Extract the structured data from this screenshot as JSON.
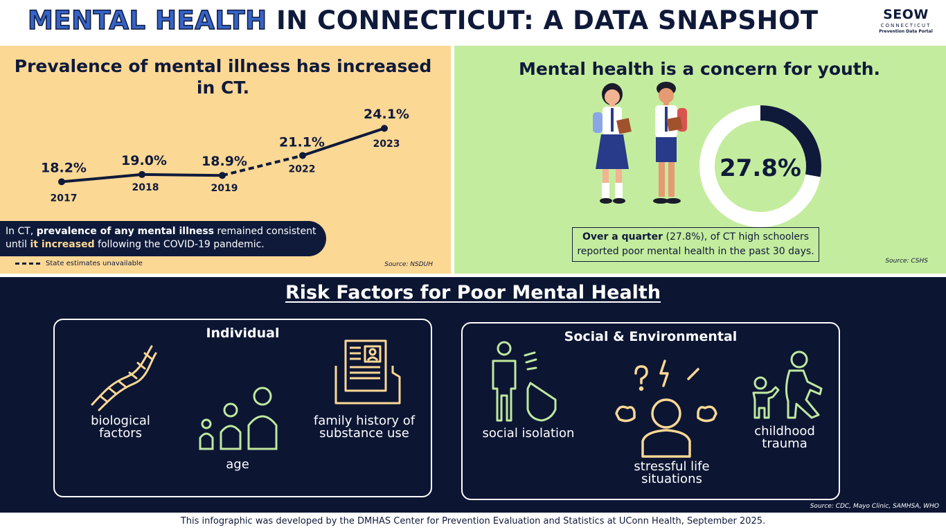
{
  "header": {
    "title_highlight": "MENTAL HEALTH",
    "title_rest": " IN CONNECTICUT: A DATA SNAPSHOT",
    "logo_main": "SEOW",
    "logo_sub": "CONNECTICUT",
    "logo_caption": "Prevention Data Portal"
  },
  "prevalence": {
    "title": "Prevalence of mental illness has increased in CT.",
    "callout_prefix": "In CT, ",
    "callout_bold": "prevalence of any mental illness",
    "callout_mid": " remained consistent until ",
    "callout_highlight": "it increased",
    "callout_suffix": " following the COVID-19 pandemic.",
    "legend_label": "State estimates unavailable",
    "source": "Source: NSDUH"
  },
  "chart_data": {
    "type": "line",
    "title": "Prevalence of mental illness has increased in CT.",
    "x": [
      "2017",
      "2018",
      "2019",
      "2022",
      "2023"
    ],
    "values": [
      18.2,
      19.0,
      18.9,
      21.1,
      24.1
    ],
    "labels": [
      "18.2%",
      "19.0%",
      "18.9%",
      "21.1%",
      "24.1%"
    ],
    "dashed_segment": [
      "2019",
      "2022"
    ],
    "xlabel": "",
    "ylabel": "",
    "unit": "%"
  },
  "youth": {
    "title": "Mental health is a concern for youth.",
    "percent_value": 27.8,
    "percent_label": "27.8%",
    "box_bold": "Over a quarter",
    "box_rest": " (27.8%), of CT high schoolers reported poor mental health in the past 30 days.",
    "source": "Source: CSHS"
  },
  "risk": {
    "title": "Risk Factors for Poor Mental Health",
    "individual_title": "Individual",
    "social_title": "Social & Environmental",
    "biological": "biological factors",
    "age": "age",
    "family_history": "family history of substance use",
    "social_isolation": "social isolation",
    "stressful": "stressful life situations",
    "childhood_trauma": "childhood trauma",
    "source": "Source: CDC, Mayo Clinic, SAMHSA, WHO"
  },
  "footer": {
    "text": "This infographic was developed by the DMHAS Center for Prevention Evaluation and Statistics at UConn Health, September 2025."
  },
  "colors": {
    "navy": "#0f1a3a",
    "yellow": "#fcd895",
    "green": "#c4ec9e",
    "icon_green": "#bfe8a0",
    "icon_yellow": "#fcd895"
  }
}
